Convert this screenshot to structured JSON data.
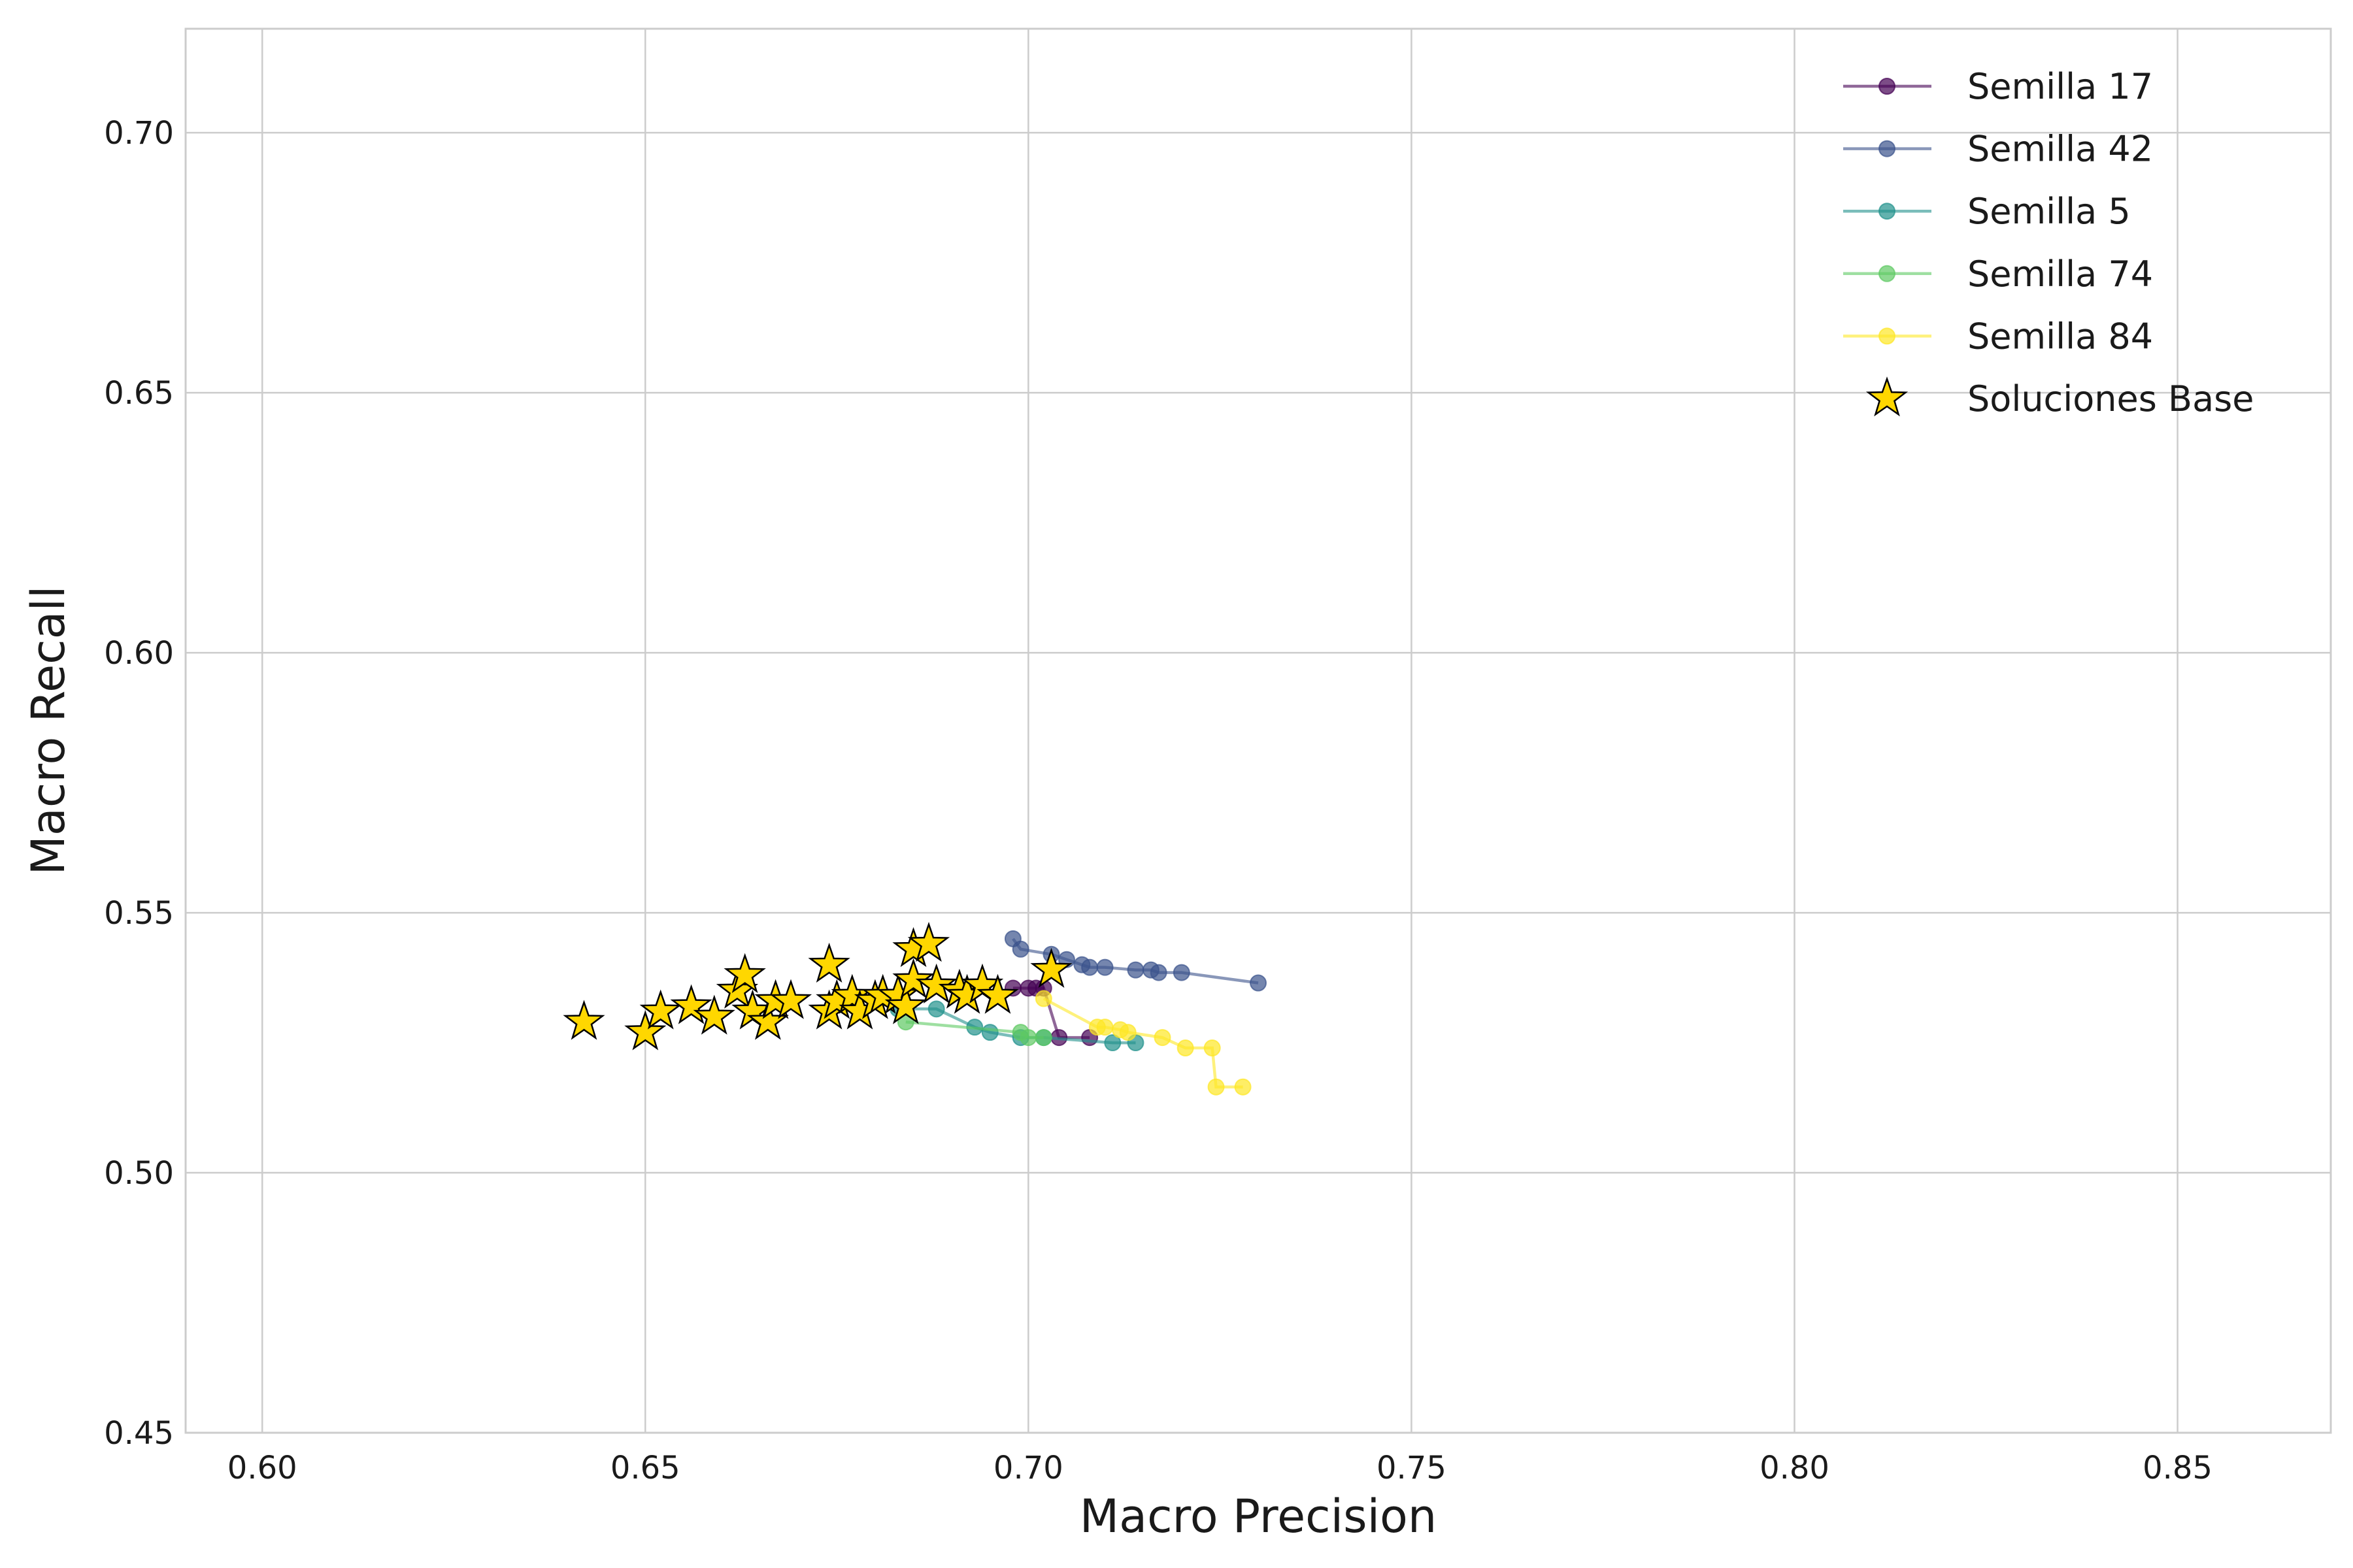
{
  "chart_data": {
    "type": "scatter",
    "title": "",
    "xlabel": "Macro Precision",
    "ylabel": "Macro Recall",
    "xlim": [
      0.59,
      0.87
    ],
    "ylim": [
      0.45,
      0.72
    ],
    "xticks": [
      "0.60",
      "0.65",
      "0.70",
      "0.75",
      "0.80",
      "0.85"
    ],
    "yticks": [
      "0.45",
      "0.50",
      "0.55",
      "0.60",
      "0.65",
      "0.70"
    ],
    "grid": true,
    "legend_position": "top-right",
    "series": [
      {
        "name": "Semilla 17",
        "color": "#440154",
        "marker": "circle",
        "points": [
          [
            0.698,
            0.5355
          ],
          [
            0.7,
            0.5355
          ],
          [
            0.701,
            0.5355
          ],
          [
            0.702,
            0.5355
          ],
          [
            0.704,
            0.526
          ],
          [
            0.708,
            0.526
          ]
        ]
      },
      {
        "name": "Semilla 42",
        "color": "#3b528b",
        "marker": "circle",
        "points": [
          [
            0.698,
            0.545
          ],
          [
            0.699,
            0.543
          ],
          [
            0.703,
            0.542
          ],
          [
            0.705,
            0.541
          ],
          [
            0.707,
            0.54
          ],
          [
            0.708,
            0.5395
          ],
          [
            0.71,
            0.5395
          ],
          [
            0.714,
            0.539
          ],
          [
            0.716,
            0.539
          ],
          [
            0.717,
            0.5385
          ],
          [
            0.72,
            0.5385
          ],
          [
            0.73,
            0.5365
          ]
        ]
      },
      {
        "name": "Semilla 5",
        "color": "#21918c",
        "marker": "circle",
        "points": [
          [
            0.683,
            0.5315
          ],
          [
            0.688,
            0.5315
          ],
          [
            0.693,
            0.528
          ],
          [
            0.695,
            0.527
          ],
          [
            0.699,
            0.526
          ],
          [
            0.702,
            0.526
          ],
          [
            0.711,
            0.525
          ],
          [
            0.714,
            0.525
          ]
        ]
      },
      {
        "name": "Semilla 74",
        "color": "#5ec962",
        "marker": "circle",
        "points": [
          [
            0.684,
            0.529
          ],
          [
            0.699,
            0.527
          ],
          [
            0.7,
            0.526
          ],
          [
            0.702,
            0.526
          ]
        ]
      },
      {
        "name": "Semilla 84",
        "color": "#fde725",
        "marker": "circle",
        "points": [
          [
            0.702,
            0.5335
          ],
          [
            0.709,
            0.528
          ],
          [
            0.71,
            0.528
          ],
          [
            0.712,
            0.5275
          ],
          [
            0.713,
            0.527
          ],
          [
            0.7175,
            0.526
          ],
          [
            0.7205,
            0.524
          ],
          [
            0.724,
            0.524
          ],
          [
            0.7245,
            0.5165
          ],
          [
            0.728,
            0.5165
          ]
        ]
      }
    ],
    "base_solutions": {
      "name": "Soluciones Base",
      "color": "#ffd700",
      "marker": "star",
      "points": [
        [
          0.642,
          0.529
        ],
        [
          0.65,
          0.527
        ],
        [
          0.652,
          0.531
        ],
        [
          0.656,
          0.532
        ],
        [
          0.659,
          0.53
        ],
        [
          0.662,
          0.535
        ],
        [
          0.663,
          0.538
        ],
        [
          0.664,
          0.531
        ],
        [
          0.666,
          0.529
        ],
        [
          0.667,
          0.533
        ],
        [
          0.669,
          0.533
        ],
        [
          0.674,
          0.531
        ],
        [
          0.674,
          0.54
        ],
        [
          0.675,
          0.533
        ],
        [
          0.677,
          0.534
        ],
        [
          0.678,
          0.531
        ],
        [
          0.68,
          0.533
        ],
        [
          0.681,
          0.534
        ],
        [
          0.683,
          0.534
        ],
        [
          0.684,
          0.532
        ],
        [
          0.685,
          0.537
        ],
        [
          0.685,
          0.543
        ],
        [
          0.687,
          0.544
        ],
        [
          0.688,
          0.536
        ],
        [
          0.691,
          0.535
        ],
        [
          0.692,
          0.534
        ],
        [
          0.694,
          0.536
        ],
        [
          0.696,
          0.534
        ],
        [
          0.703,
          0.539
        ]
      ]
    }
  }
}
